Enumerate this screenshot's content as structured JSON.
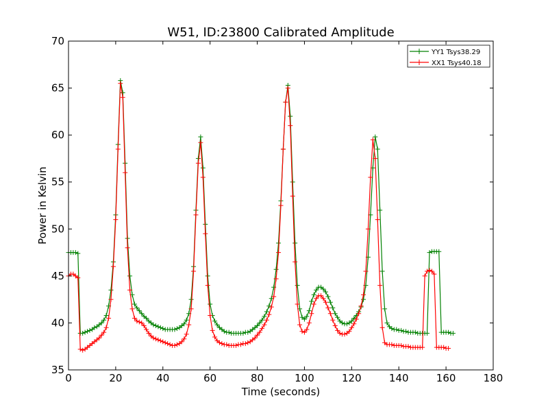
{
  "chart_data": {
    "type": "line",
    "title": "W51, ID:23800 Calibrated Amplitude",
    "xlabel": "Time (seconds)",
    "ylabel": "Power in Kelvin",
    "xlim": [
      0,
      180
    ],
    "ylim": [
      35,
      70
    ],
    "xticks": [
      "0",
      "20",
      "40",
      "60",
      "80",
      "100",
      "120",
      "140",
      "160",
      "180"
    ],
    "yticks": [
      "35",
      "40",
      "45",
      "50",
      "55",
      "60",
      "65",
      "70"
    ],
    "grid": false,
    "legend_position": "top-right",
    "x_step": 1,
    "series": [
      {
        "name": "YY1 Tsys38.29",
        "color": "#008000",
        "marker": "+",
        "x0": 0,
        "values": [
          47.5,
          47.5,
          47.5,
          47.5,
          47.4,
          38.9,
          38.9,
          39.0,
          39.1,
          39.2,
          39.3,
          39.5,
          39.6,
          39.8,
          40.0,
          40.3,
          40.8,
          41.8,
          43.5,
          46.5,
          51.5,
          59.0,
          65.8,
          64.5,
          57.0,
          49.0,
          45.0,
          43.0,
          42.0,
          41.6,
          41.3,
          41.0,
          40.7,
          40.5,
          40.2,
          40.0,
          39.8,
          39.7,
          39.6,
          39.5,
          39.4,
          39.3,
          39.3,
          39.3,
          39.3,
          39.3,
          39.4,
          39.5,
          39.7,
          39.9,
          40.3,
          41.0,
          42.5,
          46.0,
          52.0,
          57.5,
          59.8,
          56.5,
          50.5,
          45.0,
          42.0,
          40.8,
          40.2,
          39.8,
          39.5,
          39.3,
          39.1,
          39.0,
          39.0,
          38.9,
          38.9,
          38.9,
          38.9,
          38.9,
          38.9,
          39.0,
          39.0,
          39.1,
          39.3,
          39.5,
          39.7,
          40.0,
          40.3,
          40.7,
          41.2,
          41.8,
          42.6,
          43.8,
          45.7,
          48.5,
          53.0,
          58.5,
          63.5,
          65.3,
          62.0,
          55.0,
          48.5,
          44.0,
          41.5,
          40.6,
          40.4,
          40.7,
          41.3,
          42.3,
          43.0,
          43.5,
          43.8,
          43.8,
          43.6,
          43.3,
          42.8,
          42.2,
          41.6,
          41.0,
          40.6,
          40.2,
          40.0,
          39.9,
          39.9,
          40.0,
          40.2,
          40.5,
          40.8,
          41.2,
          41.7,
          42.5,
          44.0,
          47.0,
          51.5,
          56.5,
          59.8,
          58.5,
          52.0,
          45.5,
          41.5,
          40.0,
          39.6,
          39.4,
          39.3,
          39.3,
          39.2,
          39.2,
          39.1,
          39.1,
          39.0,
          39.0,
          39.0,
          39.0,
          38.9,
          38.9,
          38.9,
          38.9,
          38.9,
          47.5,
          47.6,
          47.6,
          47.6,
          47.6,
          39.0,
          39.0,
          39.0,
          39.0,
          38.9,
          38.9
        ]
      },
      {
        "name": "XX1 Tsys40.18",
        "color": "#ff0000",
        "marker": "+",
        "x0": 0,
        "values": [
          45.0,
          45.2,
          45.2,
          45.0,
          44.8,
          37.2,
          37.1,
          37.2,
          37.4,
          37.6,
          37.8,
          38.0,
          38.2,
          38.4,
          38.7,
          39.0,
          39.5,
          40.5,
          42.5,
          46.0,
          51.0,
          58.5,
          65.5,
          64.0,
          56.0,
          48.0,
          43.5,
          41.5,
          40.5,
          40.2,
          40.1,
          40.0,
          39.7,
          39.3,
          38.9,
          38.6,
          38.4,
          38.3,
          38.2,
          38.1,
          38.0,
          37.9,
          37.8,
          37.7,
          37.6,
          37.6,
          37.7,
          37.8,
          38.0,
          38.3,
          38.8,
          39.8,
          41.5,
          45.5,
          51.5,
          57.0,
          59.2,
          55.5,
          49.5,
          44.0,
          40.8,
          39.2,
          38.5,
          38.1,
          37.9,
          37.8,
          37.7,
          37.7,
          37.6,
          37.6,
          37.6,
          37.6,
          37.7,
          37.7,
          37.8,
          37.8,
          37.9,
          38.0,
          38.2,
          38.4,
          38.7,
          39.0,
          39.4,
          39.8,
          40.3,
          40.9,
          41.7,
          42.8,
          44.7,
          47.5,
          52.5,
          58.5,
          63.5,
          65.0,
          61.0,
          53.5,
          46.5,
          42.0,
          39.8,
          39.1,
          39.0,
          39.3,
          40.0,
          41.0,
          42.0,
          42.6,
          42.9,
          42.9,
          42.6,
          42.2,
          41.6,
          41.0,
          40.3,
          39.7,
          39.2,
          38.9,
          38.8,
          38.8,
          38.9,
          39.1,
          39.5,
          39.9,
          40.4,
          41.0,
          41.8,
          43.0,
          45.5,
          50.0,
          55.5,
          59.5,
          57.5,
          51.0,
          44.0,
          39.5,
          37.9,
          37.7,
          37.7,
          37.7,
          37.6,
          37.6,
          37.6,
          37.6,
          37.5,
          37.5,
          37.5,
          37.4,
          37.4,
          37.4,
          37.4,
          37.4,
          37.4,
          45.0,
          45.5,
          45.6,
          45.5,
          45.2,
          37.4,
          37.4,
          37.4,
          37.4,
          37.3,
          37.3
        ]
      }
    ]
  }
}
